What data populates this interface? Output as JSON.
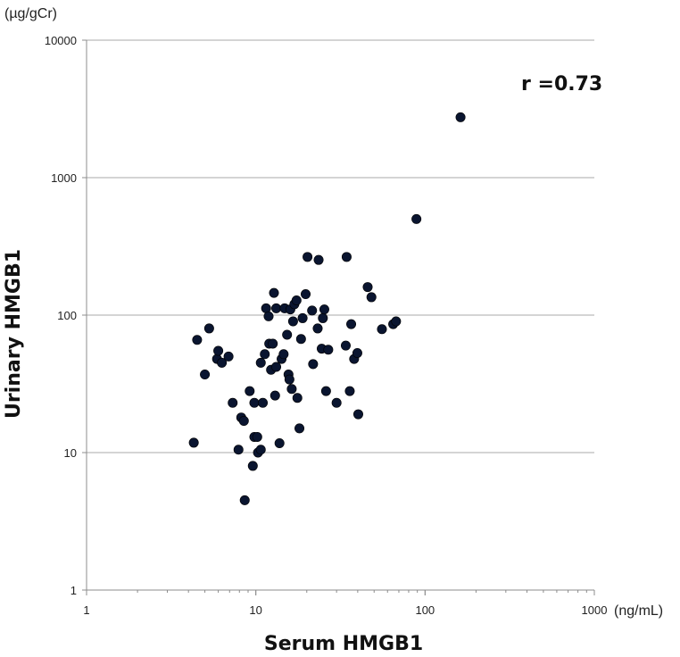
{
  "chart_data": {
    "type": "scatter",
    "title": "",
    "xlabel": "Serum HMGB1",
    "ylabel": "Urinary HMGB1",
    "x_unit": "(ng/mL)",
    "y_unit": "(µg/gCr)",
    "x_scale": "log",
    "y_scale": "log",
    "xlim": [
      1,
      1000
    ],
    "ylim": [
      1,
      10000
    ],
    "x_ticks": [
      1,
      10,
      100,
      1000
    ],
    "x_tick_labels": [
      "1",
      "10",
      "100",
      "1000"
    ],
    "y_ticks": [
      1,
      10,
      100,
      1000,
      10000
    ],
    "y_tick_labels": [
      "1",
      "10",
      "100",
      "1000",
      "10000"
    ],
    "grid": "horizontal",
    "legend": "none",
    "annotation": "r =0.73",
    "marker_color": "#0a1530",
    "points": [
      {
        "x": 4.3,
        "y": 11.8
      },
      {
        "x": 4.5,
        "y": 66
      },
      {
        "x": 5.0,
        "y": 37
      },
      {
        "x": 5.3,
        "y": 80
      },
      {
        "x": 5.9,
        "y": 48
      },
      {
        "x": 6.0,
        "y": 55
      },
      {
        "x": 6.3,
        "y": 45
      },
      {
        "x": 6.9,
        "y": 50
      },
      {
        "x": 7.3,
        "y": 23
      },
      {
        "x": 7.9,
        "y": 10.5
      },
      {
        "x": 8.2,
        "y": 18
      },
      {
        "x": 8.5,
        "y": 17
      },
      {
        "x": 8.6,
        "y": 4.5
      },
      {
        "x": 9.2,
        "y": 28
      },
      {
        "x": 9.6,
        "y": 8
      },
      {
        "x": 9.8,
        "y": 13
      },
      {
        "x": 9.8,
        "y": 23
      },
      {
        "x": 10.2,
        "y": 13
      },
      {
        "x": 10.3,
        "y": 10
      },
      {
        "x": 10.7,
        "y": 10.5
      },
      {
        "x": 10.7,
        "y": 45
      },
      {
        "x": 11.0,
        "y": 23
      },
      {
        "x": 11.3,
        "y": 52
      },
      {
        "x": 11.5,
        "y": 112
      },
      {
        "x": 11.9,
        "y": 98
      },
      {
        "x": 12.0,
        "y": 62
      },
      {
        "x": 12.3,
        "y": 40
      },
      {
        "x": 12.6,
        "y": 62
      },
      {
        "x": 12.8,
        "y": 145
      },
      {
        "x": 13.0,
        "y": 26
      },
      {
        "x": 13.2,
        "y": 42
      },
      {
        "x": 13.2,
        "y": 112
      },
      {
        "x": 13.8,
        "y": 11.7
      },
      {
        "x": 14.2,
        "y": 48
      },
      {
        "x": 14.6,
        "y": 52
      },
      {
        "x": 14.8,
        "y": 112
      },
      {
        "x": 15.3,
        "y": 72
      },
      {
        "x": 15.6,
        "y": 37
      },
      {
        "x": 15.8,
        "y": 34
      },
      {
        "x": 16.0,
        "y": 110
      },
      {
        "x": 16.3,
        "y": 29
      },
      {
        "x": 16.6,
        "y": 90
      },
      {
        "x": 16.9,
        "y": 120
      },
      {
        "x": 17.4,
        "y": 128
      },
      {
        "x": 17.6,
        "y": 25
      },
      {
        "x": 18.1,
        "y": 15
      },
      {
        "x": 18.5,
        "y": 67
      },
      {
        "x": 18.9,
        "y": 95
      },
      {
        "x": 19.7,
        "y": 142
      },
      {
        "x": 20.2,
        "y": 265
      },
      {
        "x": 21.5,
        "y": 108
      },
      {
        "x": 21.8,
        "y": 44
      },
      {
        "x": 23.2,
        "y": 80
      },
      {
        "x": 23.5,
        "y": 252
      },
      {
        "x": 24.5,
        "y": 57
      },
      {
        "x": 24.9,
        "y": 95
      },
      {
        "x": 25.4,
        "y": 110
      },
      {
        "x": 26.0,
        "y": 28
      },
      {
        "x": 26.8,
        "y": 56
      },
      {
        "x": 30.0,
        "y": 23
      },
      {
        "x": 34.0,
        "y": 60
      },
      {
        "x": 34.4,
        "y": 265
      },
      {
        "x": 35.9,
        "y": 28
      },
      {
        "x": 36.6,
        "y": 86
      },
      {
        "x": 38.1,
        "y": 48
      },
      {
        "x": 39.8,
        "y": 53
      },
      {
        "x": 40.3,
        "y": 19
      },
      {
        "x": 45.8,
        "y": 160
      },
      {
        "x": 48.2,
        "y": 135
      },
      {
        "x": 55.6,
        "y": 79
      },
      {
        "x": 64.8,
        "y": 86
      },
      {
        "x": 67.4,
        "y": 90
      },
      {
        "x": 88.9,
        "y": 500
      },
      {
        "x": 162,
        "y": 2750
      }
    ]
  }
}
